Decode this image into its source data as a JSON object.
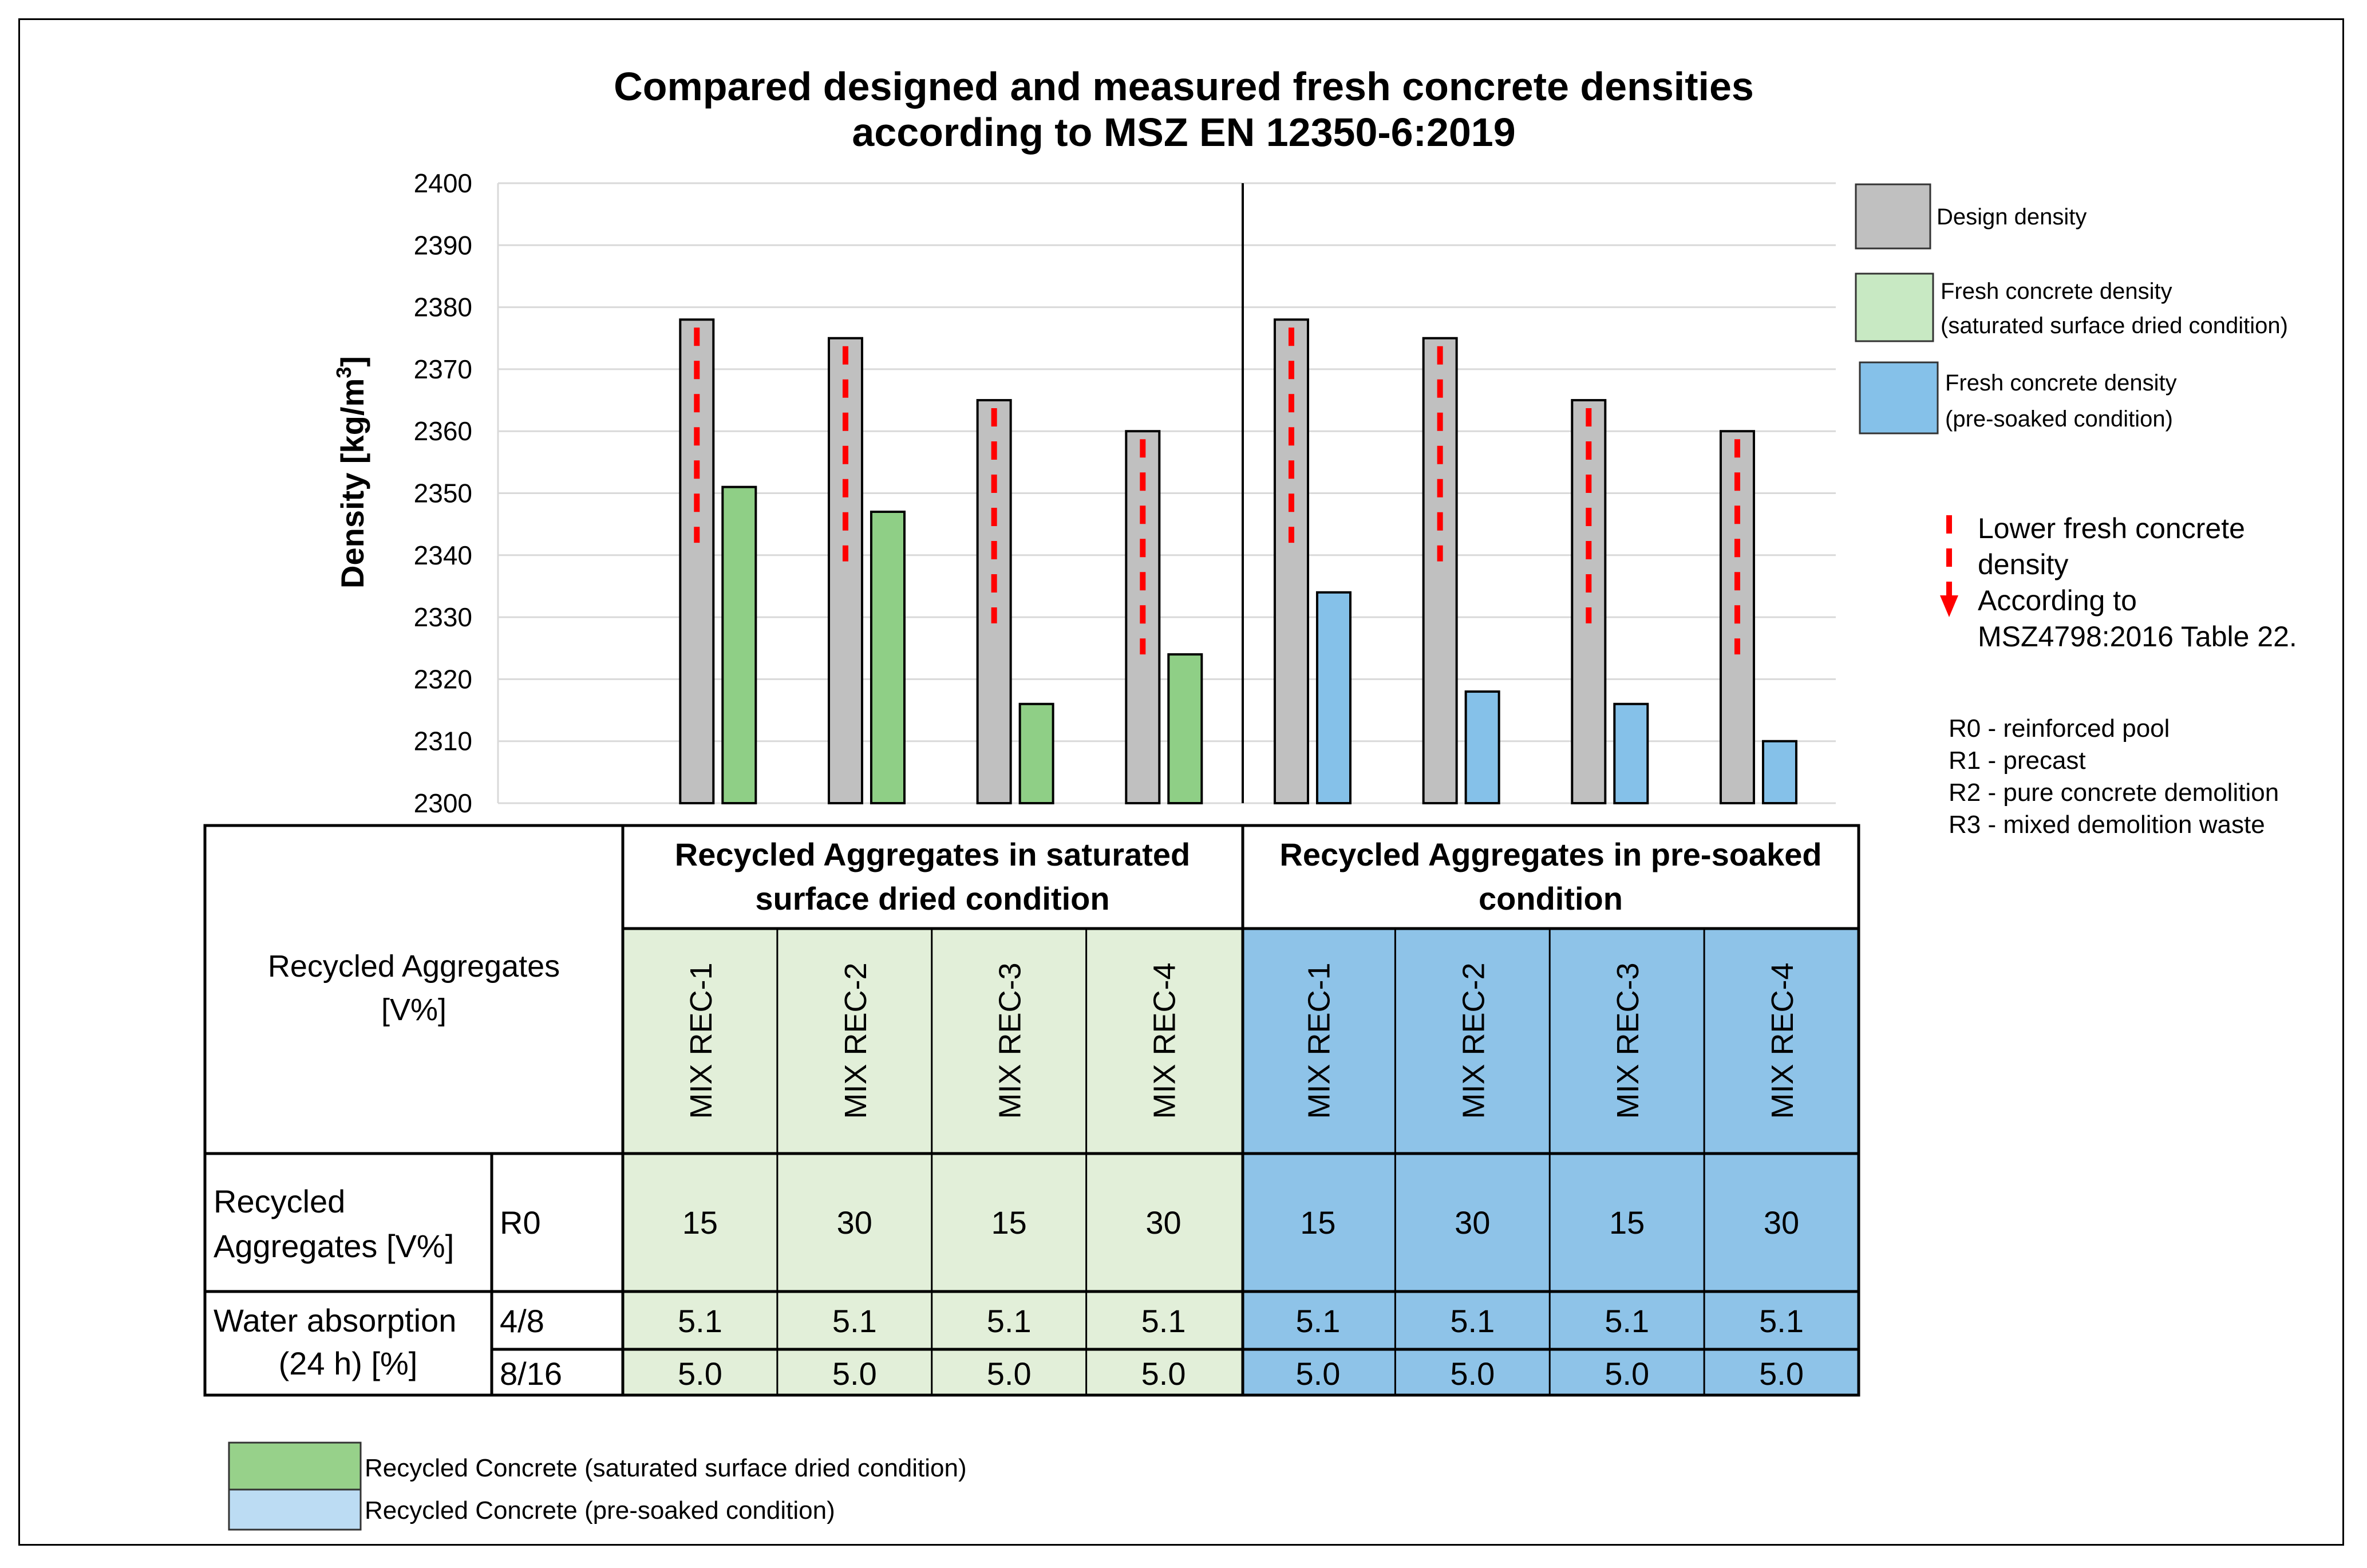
{
  "chart_data": {
    "type": "bar",
    "title_line1": "Compared designed and measured fresh concrete densities",
    "title_line2": "according to MSZ EN 12350-6:2019",
    "ylabel_main": "Density [kg/m",
    "ylabel_sup": "3",
    "ylabel_end": "]",
    "ylim": [
      2300,
      2400
    ],
    "yticks": [
      "2300",
      "2310",
      "2320",
      "2330",
      "2340",
      "2350",
      "2360",
      "2370",
      "2380",
      "2390",
      "2400"
    ],
    "grid": true,
    "groups": [
      {
        "design": 2378,
        "fresh": 2351,
        "lower": 2342,
        "condition": "ssd"
      },
      {
        "design": 2375,
        "fresh": 2347,
        "lower": 2339,
        "condition": "ssd"
      },
      {
        "design": 2365,
        "fresh": 2316,
        "lower": 2329,
        "condition": "ssd"
      },
      {
        "design": 2360,
        "fresh": 2324,
        "lower": 2324,
        "condition": "ssd"
      },
      {
        "design": 2378,
        "fresh": 2334,
        "lower": 2342,
        "condition": "soaked"
      },
      {
        "design": 2375,
        "fresh": 2318,
        "lower": 2339,
        "condition": "soaked"
      },
      {
        "design": 2365,
        "fresh": 2316,
        "lower": 2329,
        "condition": "soaked"
      },
      {
        "design": 2360,
        "fresh": 2310,
        "lower": 2324,
        "condition": "soaked"
      }
    ],
    "legend": {
      "design": "Design density",
      "ssd_line1": "Fresh concrete density",
      "ssd_line2": "(saturated surface dried condition)",
      "soaked_line1": "Fresh concrete density",
      "soaked_line2": "(pre-soaked condition)",
      "lower_line1": "Lower fresh concrete",
      "lower_line2": "density",
      "lower_line3": "According to",
      "lower_line4": "MSZ4798:2016 Table 22."
    },
    "notes": [
      "R0 - reinforced pool",
      "R1 - precast",
      "R2 - pure concrete demolition",
      "R3 - mixed demolition waste"
    ]
  },
  "table": {
    "row_header_main_line1": "Recycled Aggregates",
    "row_header_main_line2": "[V%]",
    "ssd_header_line1": "Recycled Aggregates in saturated",
    "ssd_header_line2": "surface dried condition",
    "soaked_header_line1": "Recycled Aggregates in pre-soaked",
    "soaked_header_line2": "condition",
    "mixes": [
      "MIX REC-1",
      "MIX REC-2",
      "MIX REC-3",
      "MIX REC-4",
      "MIX REC-1",
      "MIX REC-2",
      "MIX REC-3",
      "MIX REC-4"
    ],
    "ra_label_line1": "Recycled",
    "ra_label_line2": "Aggregates [V%]",
    "ra_sub": "R0",
    "ra_values": [
      "15",
      "30",
      "15",
      "30",
      "15",
      "30",
      "15",
      "30"
    ],
    "wa_label_line1": "Water absorption",
    "wa_label_line2": "(24 h) [%]",
    "wa_sub1": "4/8",
    "wa_sub2": "8/16",
    "wa48": [
      "5.1",
      "5.1",
      "5.1",
      "5.1",
      "5.1",
      "5.1",
      "5.1",
      "5.1"
    ],
    "wa816": [
      "5.0",
      "5.0",
      "5.0",
      "5.0",
      "5.0",
      "5.0",
      "5.0",
      "5.0"
    ]
  },
  "bottom_legend": {
    "ssd": "Recycled Concrete (saturated surface dried condition)",
    "soaked": "Recycled Concrete (pre-soaked condition)"
  },
  "colors": {
    "design": "#c0c0c0",
    "fresh_ssd": "#8fcf86",
    "fresh_soaked": "#85c1e9",
    "lower_marker": "#ff0000",
    "table_ssd_fill": "#e2efd9",
    "table_soaked_fill": "#8ec3e8",
    "legend_ssd": "#97d18a",
    "legend_soaked": "#bcdcf3"
  }
}
